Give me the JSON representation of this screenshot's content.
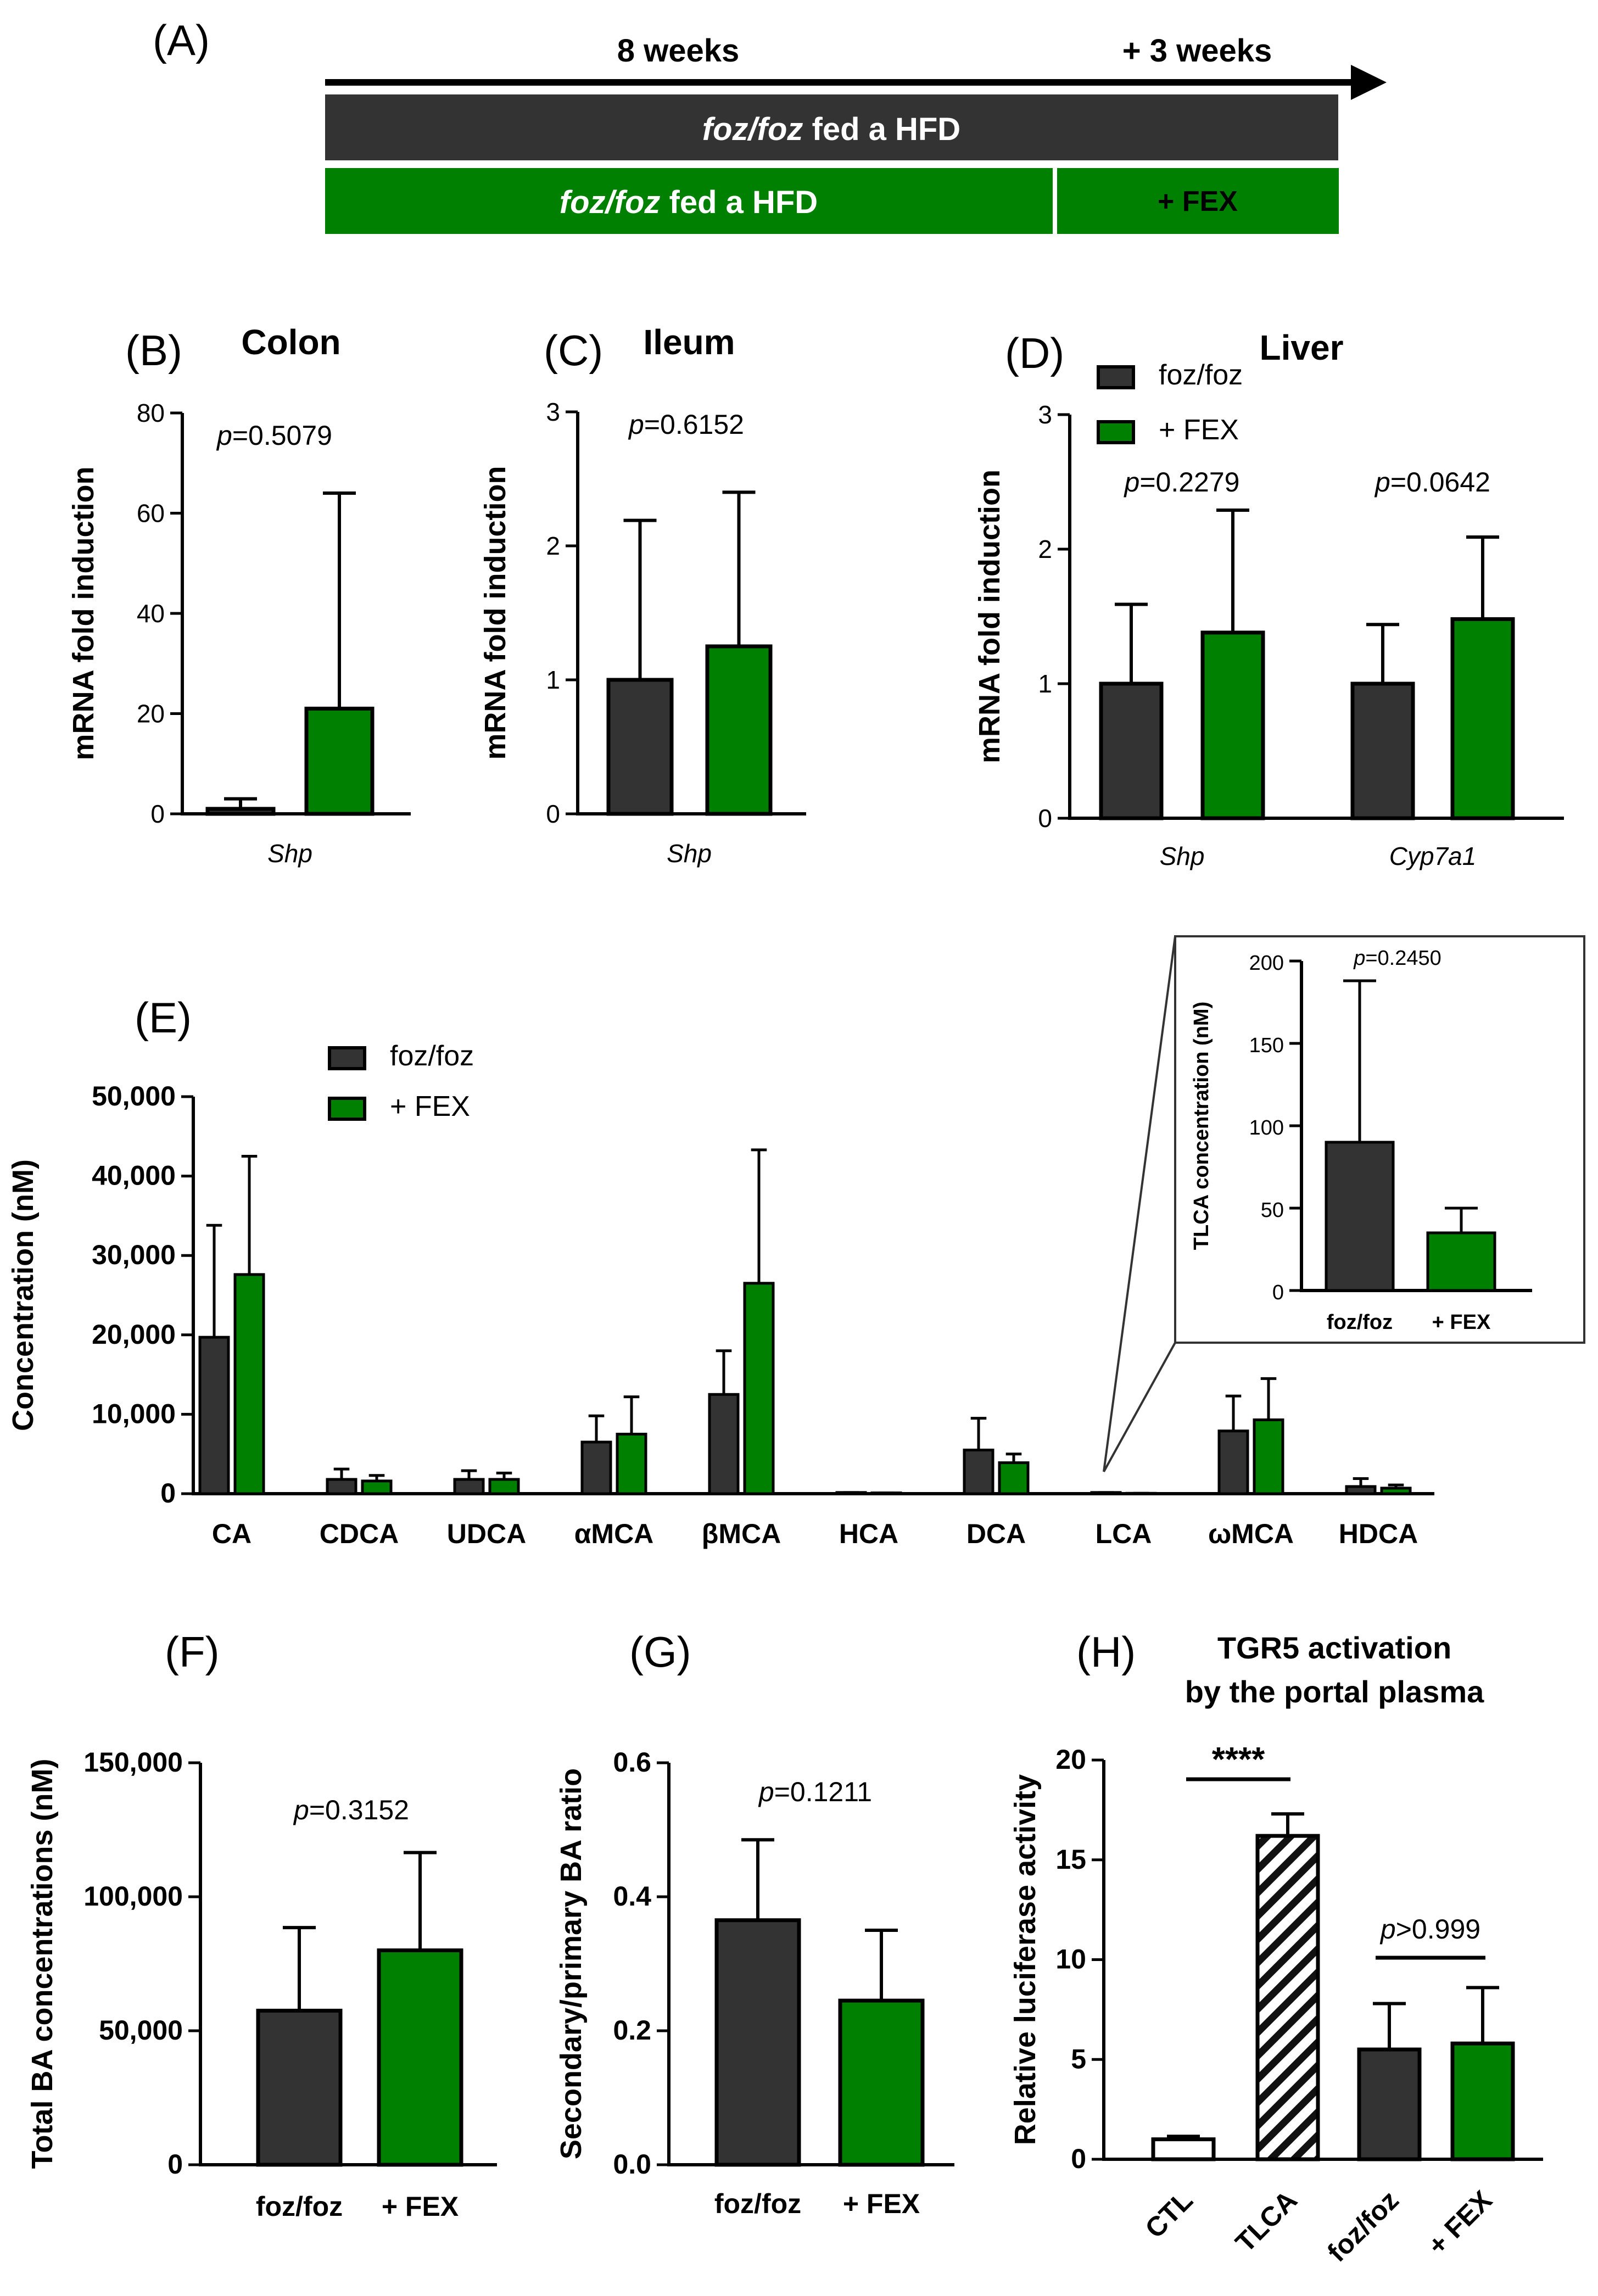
{
  "colors": {
    "foz": "#333333",
    "fex": "#008000",
    "ctl": "#ffffff"
  },
  "timeline": {
    "letter": "(A)",
    "label_8w": "8 weeks",
    "label_3w": "+ 3 weeks",
    "bar1_italic": "foz/foz",
    "bar1_rest": " fed a HFD",
    "bar2_italic": "foz/foz",
    "bar2_rest": " fed a HFD",
    "bar2_fex": "+ FEX"
  },
  "chart_data": [
    {
      "id": "B",
      "type": "bar",
      "letter": "(B)",
      "title": "Colon",
      "ylabel": "mRNA fold induction",
      "ylim": [
        0,
        80
      ],
      "yticks": [
        "0",
        "20",
        "40",
        "60",
        "80"
      ],
      "categories": [
        "Shp"
      ],
      "series": [
        {
          "name": "foz/foz",
          "values": [
            1
          ],
          "errors": [
            2
          ]
        },
        {
          "name": "+ FEX",
          "values": [
            21
          ],
          "errors": [
            43
          ]
        }
      ],
      "pvalues": [
        "p=0.5079"
      ]
    },
    {
      "id": "C",
      "type": "bar",
      "letter": "(C)",
      "title": "Ileum",
      "ylabel": "mRNA fold induction",
      "ylim": [
        0,
        3
      ],
      "yticks": [
        "0",
        "1",
        "2",
        "3"
      ],
      "categories": [
        "Shp"
      ],
      "series": [
        {
          "name": "foz/foz",
          "values": [
            1.0
          ],
          "errors": [
            1.19
          ]
        },
        {
          "name": "+ FEX",
          "values": [
            1.25
          ],
          "errors": [
            1.15
          ]
        }
      ],
      "pvalues": [
        "p=0.6152"
      ]
    },
    {
      "id": "D",
      "type": "bar",
      "letter": "(D)",
      "title": "Liver",
      "ylabel": "mRNA fold induction",
      "ylim": [
        0,
        3
      ],
      "yticks": [
        "0",
        "1",
        "2",
        "3"
      ],
      "categories": [
        "Shp",
        "Cyp7a1"
      ],
      "series": [
        {
          "name": "foz/foz",
          "values": [
            1.0,
            1.0
          ],
          "errors": [
            0.59,
            0.44
          ]
        },
        {
          "name": "+ FEX",
          "values": [
            1.38,
            1.48
          ],
          "errors": [
            0.91,
            0.61
          ]
        }
      ],
      "legend": [
        "foz/foz",
        "+ FEX"
      ],
      "pvalues": [
        "p=0.2279",
        "p=0.0642"
      ]
    },
    {
      "id": "E",
      "type": "bar",
      "letter": "(E)",
      "ylabel": "Concentration (nM)",
      "ylim": [
        0,
        50000
      ],
      "yticks": [
        "0",
        "10,000",
        "20,000",
        "30,000",
        "40,000",
        "50,000"
      ],
      "categories": [
        "CA",
        "CDCA",
        "UDCA",
        "αMCA",
        "βMCA",
        "HCA",
        "DCA",
        "LCA",
        "ωMCA",
        "HDCA"
      ],
      "series": [
        {
          "name": "foz/foz",
          "values": [
            19700,
            1800,
            1800,
            6500,
            12500,
            150,
            5500,
            150,
            7900,
            900
          ],
          "errors": [
            14100,
            1300,
            1100,
            3300,
            5500,
            0,
            4000,
            0,
            4400,
            1000
          ]
        },
        {
          "name": "+ FEX",
          "values": [
            27600,
            1600,
            1800,
            7500,
            26500,
            100,
            3900,
            50,
            9300,
            700
          ],
          "errors": [
            14900,
            700,
            800,
            4700,
            16800,
            0,
            1100,
            0,
            5200,
            400
          ]
        }
      ],
      "legend": [
        "foz/foz",
        "+ FEX"
      ]
    },
    {
      "id": "E_inset",
      "type": "bar",
      "ylabel": "TLCA concentration (nM)",
      "ylim": [
        0,
        200
      ],
      "yticks": [
        "0",
        "50",
        "100",
        "150",
        "200"
      ],
      "categories": [
        "foz/foz",
        "+ FEX"
      ],
      "values": [
        90,
        35
      ],
      "errors": [
        98,
        15
      ],
      "pvalues": [
        "p=0.2450"
      ]
    },
    {
      "id": "F",
      "type": "bar",
      "letter": "(F)",
      "ylabel": "Total BA concentrations (nM)",
      "ylim": [
        0,
        150000
      ],
      "yticks": [
        "0",
        "50,000",
        "100,000",
        "150,000"
      ],
      "categories": [
        "foz/foz",
        "+ FEX"
      ],
      "values": [
        57500,
        80000
      ],
      "errors": [
        31000,
        36500
      ],
      "pvalues": [
        "p=0.3152"
      ]
    },
    {
      "id": "G",
      "type": "bar",
      "letter": "(G)",
      "ylabel": "Secondary/primary BA ratio",
      "ylim": [
        0,
        0.6
      ],
      "yticks": [
        "0.0",
        "0.2",
        "0.4",
        "0.6"
      ],
      "categories": [
        "foz/foz",
        "+ FEX"
      ],
      "values": [
        0.365,
        0.245
      ],
      "errors": [
        0.12,
        0.105
      ],
      "pvalues": [
        "p=0.1211"
      ]
    },
    {
      "id": "H",
      "type": "bar",
      "letter": "(H)",
      "title_line1": "TGR5 activation",
      "title_line2": "by the portal plasma",
      "ylabel": "Relative luciferase activity",
      "ylim": [
        0,
        20
      ],
      "yticks": [
        "0",
        "5",
        "10",
        "15",
        "20"
      ],
      "categories": [
        "CTL",
        "TLCA",
        "foz/foz",
        "+ FEX"
      ],
      "values": [
        1.0,
        16.2,
        5.5,
        5.8
      ],
      "errors": [
        0.15,
        1.1,
        2.3,
        2.8
      ],
      "significance": [
        "****",
        "p>0.999"
      ]
    }
  ]
}
